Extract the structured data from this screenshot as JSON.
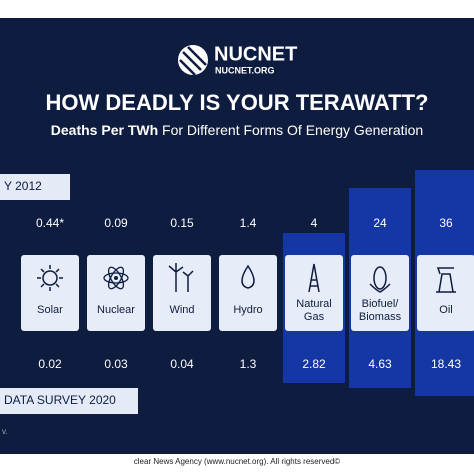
{
  "header": {
    "logo": "NUCNET",
    "logo_url": "NUCNET.ORG",
    "title": "HOW DEADLY IS YOUR TERAWATT?",
    "subtitle_bold": "Deaths Per TWh",
    "subtitle_rest": "For Different Forms Of Energy Generation"
  },
  "survey_top": "Y 2012",
  "survey_bottom": "DATA SURVEY 2020",
  "columns": [
    {
      "label": [
        "Solar"
      ],
      "top": "0.44*",
      "bottom": "0.02"
    },
    {
      "label": [
        "Nuclear"
      ],
      "top": "0.09",
      "bottom": "0.03"
    },
    {
      "label": [
        "Wind"
      ],
      "top": "0.15",
      "bottom": "0.04"
    },
    {
      "label": [
        "Hydro"
      ],
      "top": "1.4",
      "bottom": "1.3"
    },
    {
      "label": [
        "Natural",
        "Gas"
      ],
      "top": "4",
      "bottom": "2.82"
    },
    {
      "label": [
        "Biofuel/",
        "Biomass"
      ],
      "top": "24",
      "bottom": "4.63"
    },
    {
      "label": [
        "Oil"
      ],
      "top": "36",
      "bottom": "18.43"
    }
  ],
  "note": "v.",
  "footer": "clear News Agency (www.nucnet.org). All rights reserved©"
}
